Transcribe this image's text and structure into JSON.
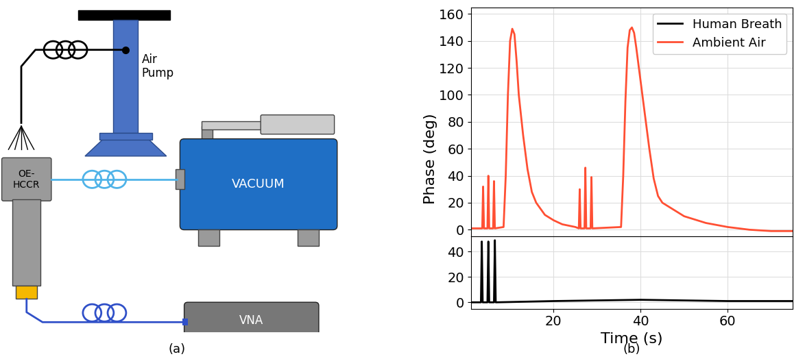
{
  "panel_a": {
    "labels": {
      "pump": "Air\nPump",
      "sensor": "OE-\nHCCR",
      "vacuum": "VACUUM",
      "analyzer": "VNA"
    },
    "caption": "(a)"
  },
  "panel_b": {
    "caption": "(b)"
  },
  "chart_data": [
    {
      "type": "line",
      "ylabel": "Phase (deg)",
      "legend": "upper right",
      "grid": true,
      "tick_labels": "y",
      "xlim": [
        1,
        75
      ],
      "xticks": [
        20,
        40,
        60
      ],
      "ylim": [
        -5,
        165
      ],
      "yticks": [
        0,
        20,
        40,
        60,
        80,
        100,
        120,
        140,
        160
      ],
      "series": [
        {
          "name": "Ambient Air",
          "color": "#ff4f33",
          "x": [
            1,
            3.6,
            3.8,
            4.0,
            4.8,
            5.0,
            5.2,
            6.1,
            6.3,
            6.5,
            8.5,
            9,
            9.5,
            10,
            10.5,
            11,
            11.5,
            12,
            13,
            14,
            15,
            16,
            18,
            20,
            22,
            25,
            25.8,
            26,
            26.2,
            27.1,
            27.3,
            27.5,
            28.5,
            28.7,
            28.9,
            35.5,
            36,
            36.5,
            37,
            37.5,
            38,
            38.5,
            39,
            40,
            41,
            42,
            43,
            44,
            45,
            46,
            48,
            50,
            55,
            60,
            65,
            70,
            75
          ],
          "values": [
            1,
            1,
            32,
            1,
            1,
            40,
            1,
            1,
            36,
            1,
            2,
            40,
            100,
            140,
            149,
            145,
            125,
            100,
            70,
            45,
            28,
            20,
            11,
            7,
            4,
            2,
            1,
            30,
            1,
            1,
            46,
            1,
            1,
            39,
            1,
            2,
            40,
            95,
            135,
            148,
            150,
            146,
            135,
            110,
            85,
            60,
            38,
            25,
            20,
            18,
            14,
            10,
            5,
            2,
            0,
            -1,
            -1
          ]
        }
      ]
    },
    {
      "type": "line",
      "xlabel": "Time (s)",
      "grid": true,
      "xlim": [
        1,
        75
      ],
      "xticks": [
        20,
        40,
        60
      ],
      "ylim": [
        -5,
        52
      ],
      "yticks": [
        0,
        20,
        40
      ],
      "series": [
        {
          "name": "Human Breath",
          "color": "#000000",
          "x": [
            1,
            3.3,
            3.5,
            3.7,
            4.8,
            5.0,
            5.2,
            6.3,
            6.5,
            6.7,
            20,
            40,
            60,
            75
          ],
          "values": [
            0,
            0,
            48,
            0,
            0,
            48,
            0,
            0,
            49,
            0,
            1,
            2,
            1,
            1
          ]
        }
      ]
    }
  ]
}
